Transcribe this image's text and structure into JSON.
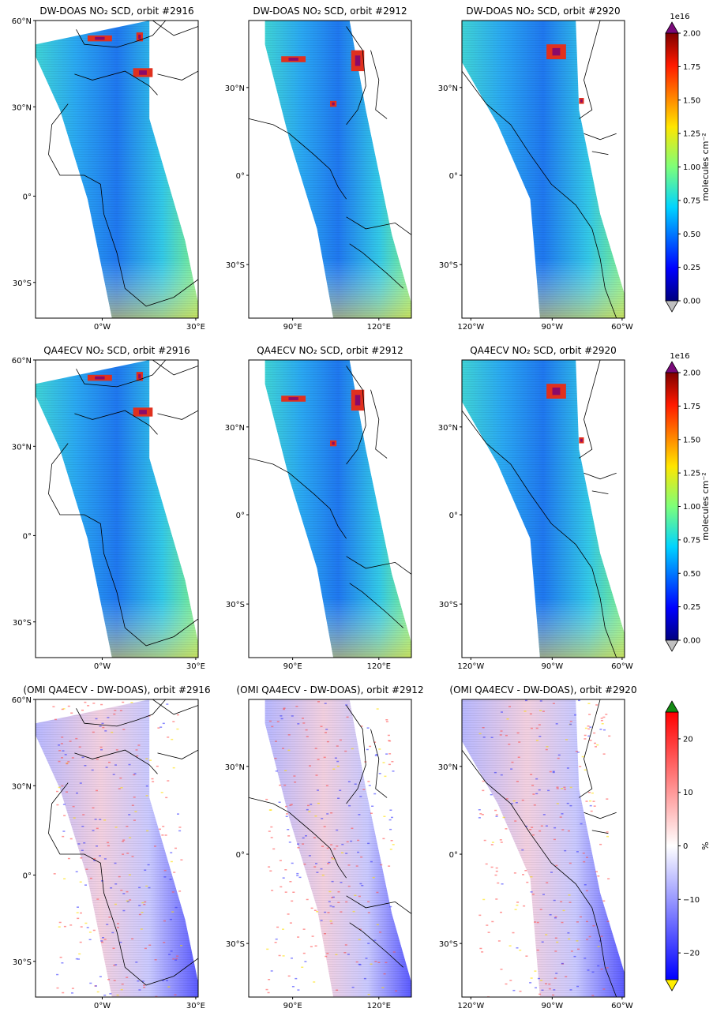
{
  "rows": [
    {
      "titles": [
        "DW-DOAS NO₂ SCD, orbit #2916",
        "DW-DOAS NO₂ SCD, orbit #2912",
        "DW-DOAS NO₂ SCD, orbit #2920"
      ],
      "colorbar": {
        "kind": "scd",
        "scale_label": "1e16",
        "unit_label": "molecules cm⁻²",
        "ticks": [
          "0.00",
          "0.25",
          "0.50",
          "0.75",
          "1.00",
          "1.25",
          "1.50",
          "1.75",
          "2.00"
        ],
        "range": [
          0,
          2.0
        ]
      }
    },
    {
      "titles": [
        "QA4ECV NO₂ SCD, orbit #2916",
        "QA4ECV NO₂ SCD, orbit #2912",
        "QA4ECV NO₂ SCD, orbit #2920"
      ],
      "colorbar": {
        "kind": "scd",
        "scale_label": "1e16",
        "unit_label": "molecules cm⁻²",
        "ticks": [
          "0.00",
          "0.25",
          "0.50",
          "0.75",
          "1.00",
          "1.25",
          "1.50",
          "1.75",
          "2.00"
        ],
        "range": [
          0,
          2.0
        ]
      }
    },
    {
      "titles": [
        "(OMI QA4ECV - DW-DOAS), orbit #2916",
        "(OMI QA4ECV - DW-DOAS), orbit #2912",
        "(OMI QA4ECV - DW-DOAS), orbit #2920"
      ],
      "colorbar": {
        "kind": "diff",
        "scale_label": "",
        "unit_label": "%",
        "ticks": [
          "−20",
          "−10",
          "0",
          "10",
          "20"
        ],
        "range": [
          -25,
          25
        ]
      }
    }
  ],
  "columns": [
    {
      "orbit": "#2916",
      "region": "Europe-Africa",
      "lat_labels": [
        "60°N",
        "30°N",
        "0°",
        "30°S"
      ],
      "lon_labels": [
        "0°W",
        "30°E"
      ]
    },
    {
      "orbit": "#2912",
      "region": "Asia-Australia",
      "lat_labels": [
        "30°N",
        "0°",
        "30°S"
      ],
      "lon_labels": [
        "90°E",
        "120°E"
      ]
    },
    {
      "orbit": "#2920",
      "region": "Americas",
      "lat_labels": [
        "30°N",
        "0°",
        "30°S"
      ],
      "lon_labels": [
        "120°W",
        "90°W",
        "60°W"
      ]
    }
  ],
  "colors": {
    "jet_low": "#00007f",
    "jet_high": "#7f0000",
    "under_scd": "#c0c0c0",
    "over_scd": "#7a0a7a",
    "diff_low": "#0000ff",
    "diff_high": "#ff0000",
    "under_diff": "#ffee00",
    "over_diff": "#148a14"
  }
}
